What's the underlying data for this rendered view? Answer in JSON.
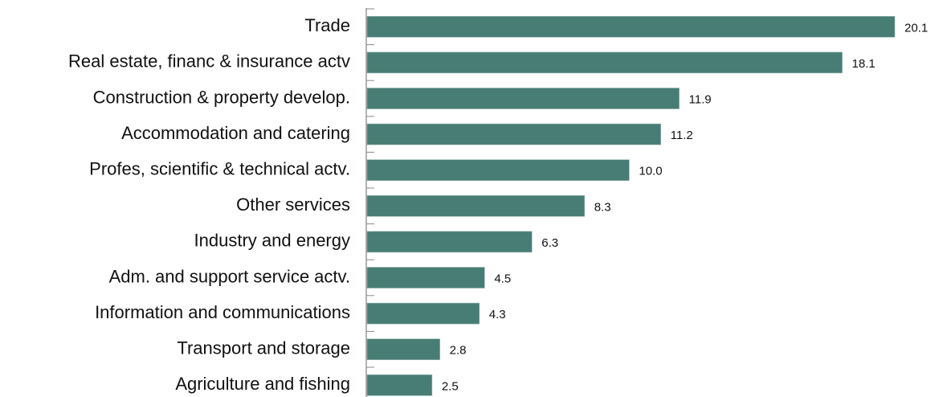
{
  "chart_data": {
    "type": "bar",
    "orientation": "horizontal",
    "categories": [
      "Trade",
      "Real estate, financ & insurance actv",
      "Construction & property develop.",
      "Accommodation and catering",
      "Profes, scientific & technical actv.",
      "Other services",
      "Industry and energy",
      "Adm. and support service actv.",
      "Information and communications",
      "Transport and storage",
      "Agriculture and fishing"
    ],
    "values": [
      20.1,
      18.1,
      11.9,
      11.2,
      10.0,
      8.3,
      6.3,
      4.5,
      4.3,
      2.8,
      2.5
    ],
    "value_labels": [
      "20.1",
      "18.1",
      "11.9",
      "11.2",
      "10.0",
      "8.3",
      "6.3",
      "4.5",
      "4.3",
      "2.8",
      "2.5"
    ],
    "color": "#477d74"
  }
}
